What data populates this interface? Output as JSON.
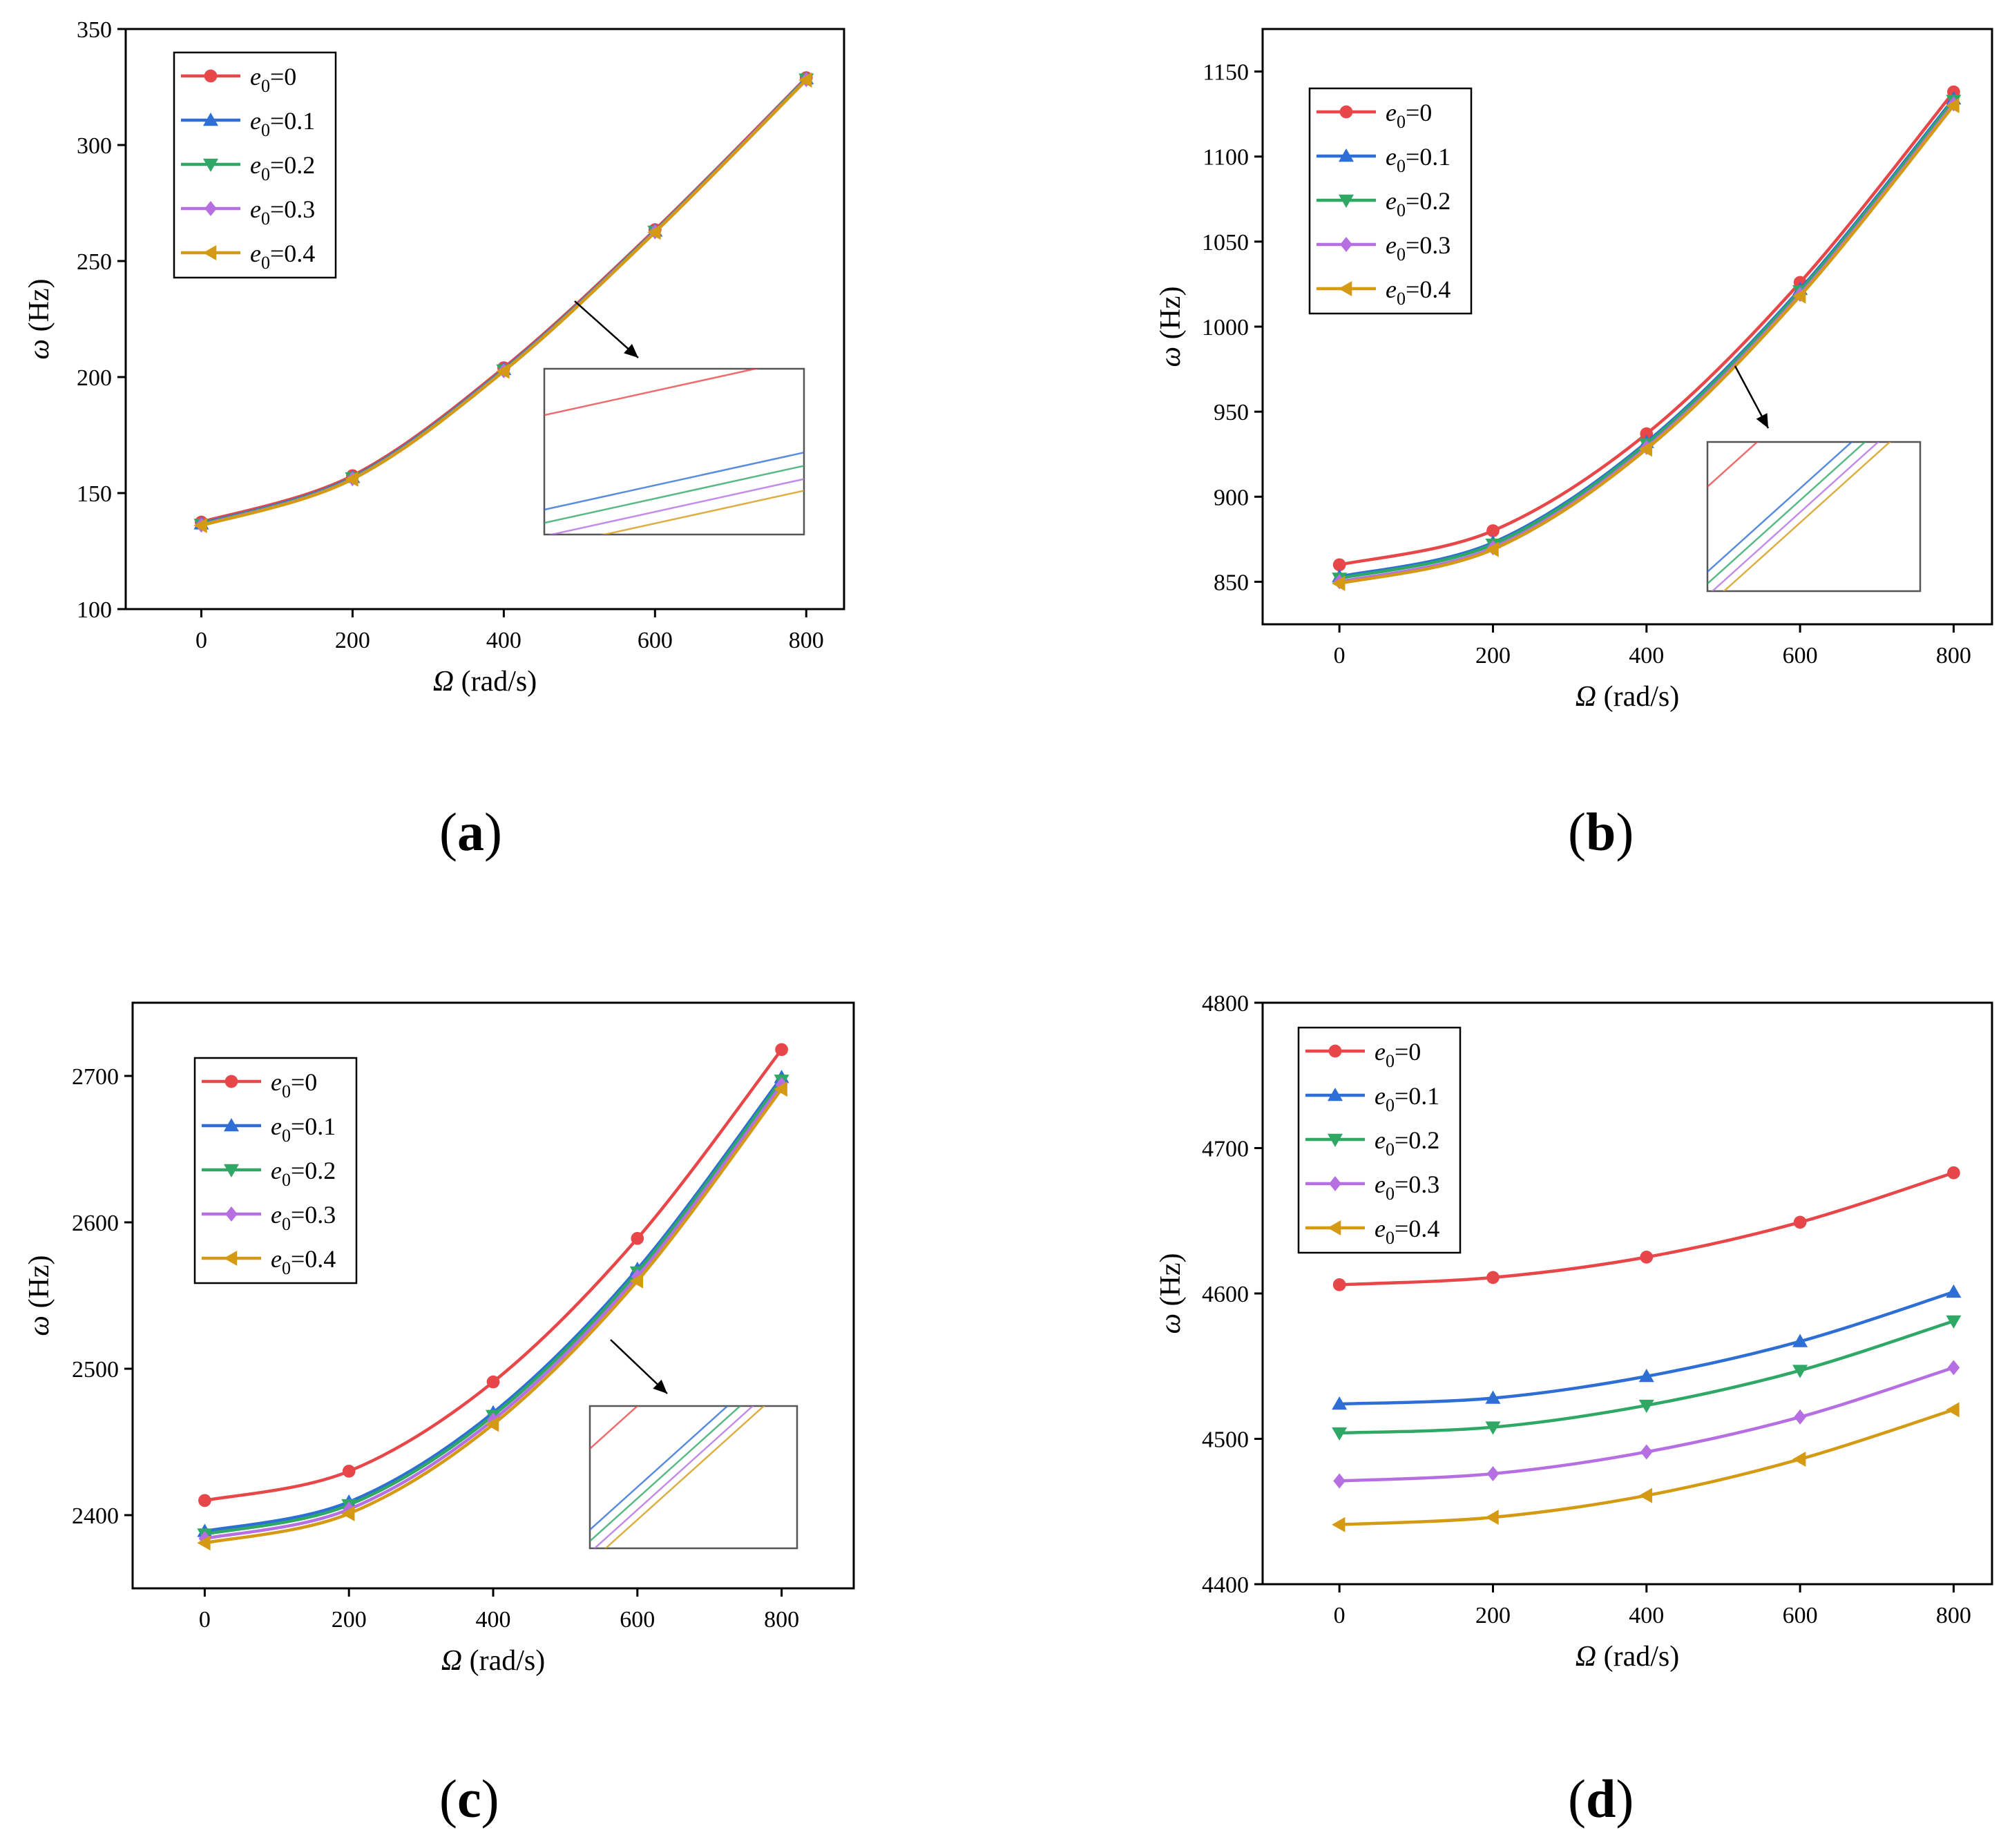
{
  "legend_labels": [
    "e0=0",
    "e0=0.1",
    "e0=0.2",
    "e0=0.3",
    "e0=0.4"
  ],
  "colors": {
    "e0_0": "#e8474a",
    "e0_0_1": "#2e6fd6",
    "e0_0_2": "#2fa866",
    "e0_0_3": "#b56fe3",
    "e0_0_4": "#d49a14"
  },
  "chart_data": [
    {
      "panel": "a",
      "caption": "a",
      "type": "line",
      "xlabel": "Ω (rad/s)",
      "ylabel": "ω (Hz)",
      "x": [
        0,
        200,
        400,
        600,
        800
      ],
      "xlim": [
        -100,
        850
      ],
      "ylim": [
        100,
        350
      ],
      "xticks": [
        0,
        200,
        400,
        600,
        800
      ],
      "yticks": [
        100,
        150,
        200,
        250,
        300,
        350
      ],
      "legend": "top-left",
      "inset": true,
      "series": [
        {
          "name": "e0=0",
          "values": [
            137.5,
            157.5,
            204.0,
            263.5,
            329.0
          ]
        },
        {
          "name": "e0=0.1",
          "values": [
            136.8,
            156.8,
            203.3,
            263.0,
            328.6
          ]
        },
        {
          "name": "e0=0.2",
          "values": [
            136.5,
            156.5,
            203.0,
            262.8,
            328.4
          ]
        },
        {
          "name": "e0=0.3",
          "values": [
            136.2,
            156.2,
            202.7,
            262.6,
            328.2
          ]
        },
        {
          "name": "e0=0.4",
          "values": [
            136.0,
            156.0,
            202.5,
            262.4,
            328.0
          ]
        }
      ]
    },
    {
      "panel": "b",
      "caption": "b",
      "type": "line",
      "xlabel": "Ω (rad/s)",
      "ylabel": "ω (Hz)",
      "x": [
        0,
        200,
        400,
        600,
        800
      ],
      "xlim": [
        -100,
        850
      ],
      "ylim": [
        825,
        1175
      ],
      "xticks": [
        0,
        200,
        400,
        600,
        800
      ],
      "yticks": [
        850,
        900,
        950,
        1000,
        1050,
        1100,
        1150
      ],
      "legend": "top-left",
      "inset": true,
      "series": [
        {
          "name": "e0=0",
          "values": [
            860,
            880,
            937,
            1026,
            1138
          ]
        },
        {
          "name": "e0=0.1",
          "values": [
            853,
            873,
            932,
            1022,
            1134
          ]
        },
        {
          "name": "e0=0.2",
          "values": [
            852,
            872,
            931,
            1021,
            1133
          ]
        },
        {
          "name": "e0=0.3",
          "values": [
            850,
            870,
            929,
            1019,
            1131
          ]
        },
        {
          "name": "e0=0.4",
          "values": [
            849,
            869,
            928,
            1018,
            1130
          ]
        }
      ]
    },
    {
      "panel": "c",
      "caption": "c",
      "type": "line",
      "xlabel": "Ω (rad/s)",
      "ylabel": "ω (Hz)",
      "x": [
        0,
        200,
        400,
        600,
        800
      ],
      "xlim": [
        -100,
        900
      ],
      "ylim": [
        2350,
        2750
      ],
      "xticks": [
        0,
        200,
        400,
        600,
        800
      ],
      "yticks": [
        2400,
        2500,
        2600,
        2700
      ],
      "legend": "top-left",
      "inset": true,
      "series": [
        {
          "name": "e0=0",
          "values": [
            2410,
            2430,
            2491,
            2589,
            2718
          ]
        },
        {
          "name": "e0=0.1",
          "values": [
            2389,
            2409,
            2470,
            2568,
            2699
          ]
        },
        {
          "name": "e0=0.2",
          "values": [
            2387,
            2407,
            2468,
            2566,
            2697
          ]
        },
        {
          "name": "e0=0.3",
          "values": [
            2384,
            2404,
            2465,
            2563,
            2694
          ]
        },
        {
          "name": "e0=0.4",
          "values": [
            2381,
            2401,
            2462,
            2560,
            2691
          ]
        }
      ]
    },
    {
      "panel": "d",
      "caption": "d",
      "type": "line",
      "xlabel": "Ω (rad/s)",
      "ylabel": "ω (Hz)",
      "x": [
        0,
        200,
        400,
        600,
        800
      ],
      "xlim": [
        -100,
        850
      ],
      "ylim": [
        4400,
        4800
      ],
      "xticks": [
        0,
        200,
        400,
        600,
        800
      ],
      "yticks": [
        4400,
        4500,
        4600,
        4700,
        4800
      ],
      "legend": "top-left",
      "inset": false,
      "series": [
        {
          "name": "e0=0",
          "values": [
            4606,
            4611,
            4625,
            4649,
            4683
          ]
        },
        {
          "name": "e0=0.1",
          "values": [
            4524,
            4528,
            4543,
            4567,
            4601
          ]
        },
        {
          "name": "e0=0.2",
          "values": [
            4504,
            4508,
            4523,
            4547,
            4581
          ]
        },
        {
          "name": "e0=0.3",
          "values": [
            4471,
            4476,
            4491,
            4515,
            4549
          ]
        },
        {
          "name": "e0=0.4",
          "values": [
            4441,
            4446,
            4461,
            4486,
            4520
          ]
        }
      ]
    }
  ]
}
